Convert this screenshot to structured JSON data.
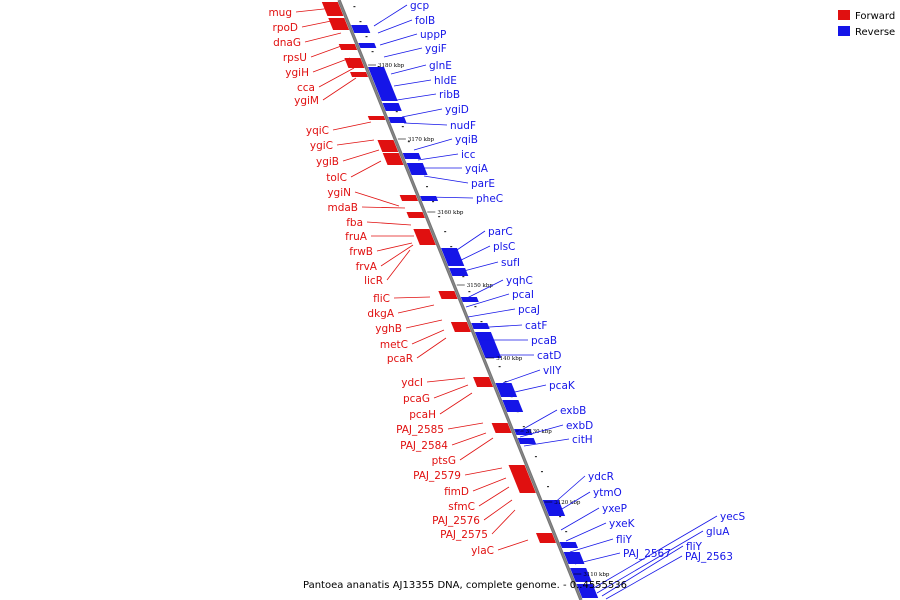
{
  "legend": [
    {
      "label": "Forward",
      "color": "#ff0000"
    },
    {
      "label": "Reverse",
      "color": "#0000ff"
    }
  ],
  "caption": "Pantoea ananatis AJ13355 DNA, complete genome. - 0..4555536",
  "ticks": [
    "3180 kbp",
    "3170 kbp",
    "3160 kbp",
    "3150 kbp",
    "3140 kbp",
    "3130 kbp",
    "3120 kbp",
    "3110 kbp"
  ],
  "forward_genes": [
    "mug",
    "rpoD",
    "dnaG",
    "rpsU",
    "ygiH",
    "cca",
    "ygiM",
    "yqiC",
    "ygiC",
    "ygiB",
    "tolC",
    "ygiN",
    "mdaB",
    "fba",
    "fruA",
    "frwB",
    "frvA",
    "licR",
    "fliC",
    "dkgA",
    "yghB",
    "metC",
    "pcaR",
    "ydcI",
    "pcaG",
    "pcaH",
    "PAJ_2585",
    "PAJ_2584",
    "ptsG",
    "PAJ_2579",
    "fimD",
    "sfmC",
    "PAJ_2576",
    "PAJ_2575",
    "ylaC"
  ],
  "reverse_genes": [
    "gcp",
    "folB",
    "uppP",
    "ygiF",
    "glnE",
    "hldE",
    "ribB",
    "ygiD",
    "nudF",
    "yqiB",
    "icc",
    "yqiA",
    "parE",
    "pheC",
    "parC",
    "plsC",
    "sufI",
    "yqhC",
    "pcaI",
    "pcaJ",
    "catF",
    "pcaB",
    "catD",
    "vllY",
    "pcaK",
    "exbB",
    "exbD",
    "citH",
    "ydcR",
    "ytmO",
    "yxeP",
    "yxeK",
    "fliY",
    "PAJ_2567",
    "yecS",
    "gluA",
    "fliY",
    "PAJ_2563"
  ]
}
